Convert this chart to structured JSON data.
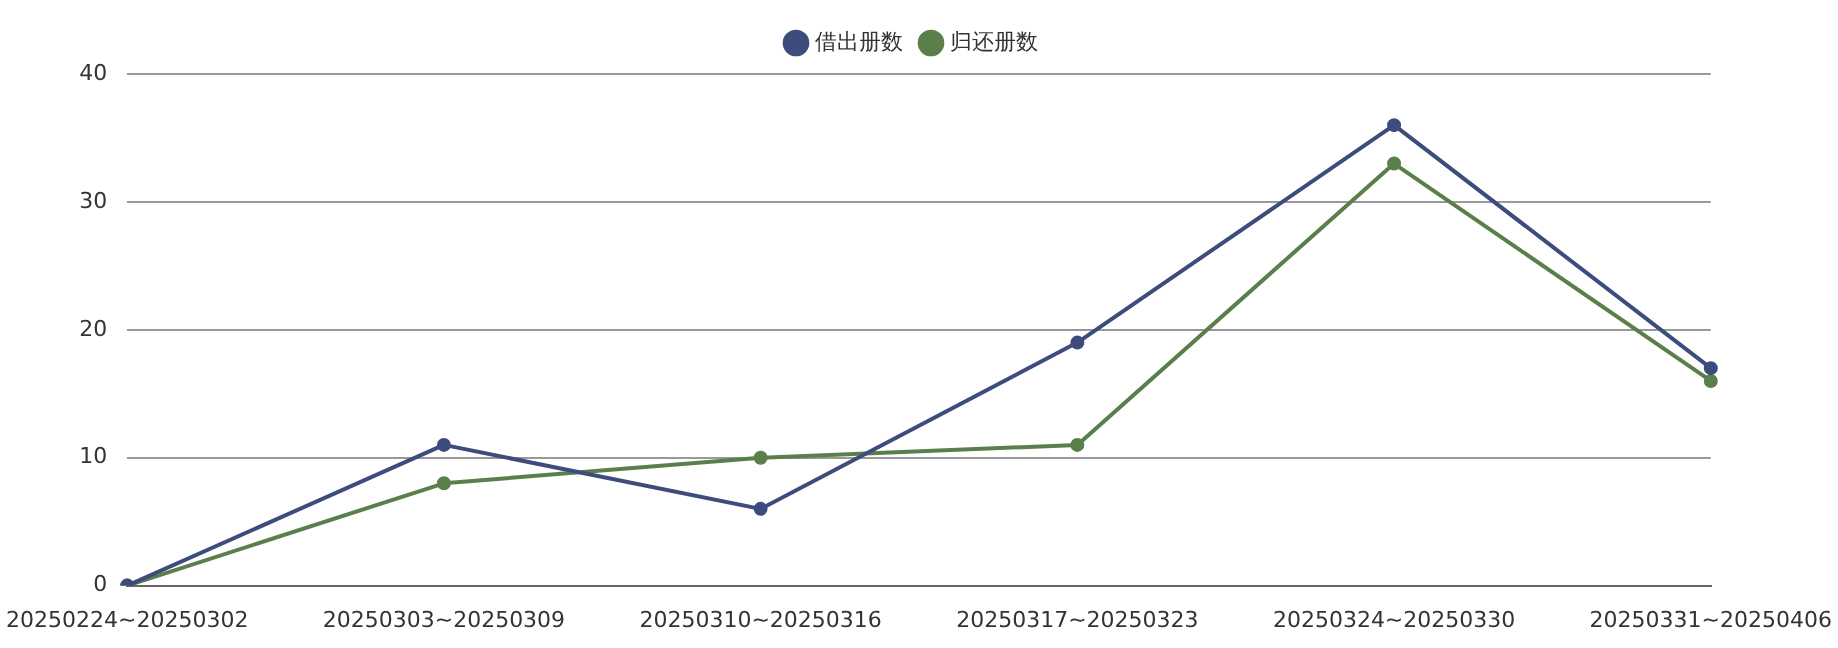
{
  "chart_data": {
    "type": "line",
    "categories": [
      "20250224~20250302",
      "20250303~20250309",
      "20250310~20250316",
      "20250317~20250323",
      "20250324~20250330",
      "20250331~20250406"
    ],
    "series": [
      {
        "name": "借出册数",
        "color": "#3d4b7d",
        "values": [
          0,
          11,
          6,
          19,
          36,
          17
        ]
      },
      {
        "name": "归还册数",
        "color": "#5b7f4a",
        "values": [
          0,
          8,
          10,
          11,
          33,
          16
        ]
      }
    ],
    "ylim": [
      0,
      40
    ],
    "yticks": [
      0,
      10,
      20,
      30,
      40
    ],
    "grid": "y",
    "legend": "top",
    "marker": "circle",
    "line_style": "solid"
  }
}
